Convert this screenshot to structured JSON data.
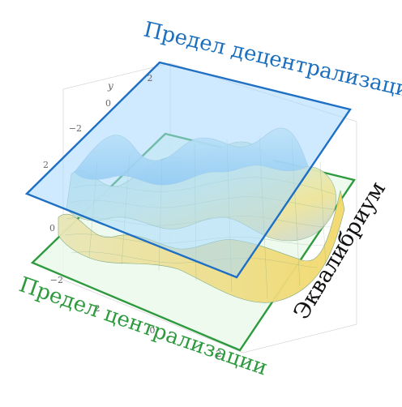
{
  "labels": {
    "top_plane": "Предел децентрализации",
    "bottom_plane": "Предел централизации",
    "surface": "Эквалибриум"
  },
  "axis": {
    "name": "y",
    "ticks_left": [
      "2",
      "0",
      "−2",
      "2",
      "0",
      "−2"
    ],
    "ticks_bottom": [
      "2",
      "0",
      "2"
    ]
  },
  "colors": {
    "top_plane_stroke": "#1f6fc4",
    "top_plane_fill": "#a8d8ff",
    "bottom_plane_stroke": "#2e9a3e",
    "bottom_plane_fill": "#e6f8e6",
    "surface_low": "#6fb6e8",
    "surface_mid": "#cfe9d2",
    "surface_high": "#f2e27a"
  }
}
